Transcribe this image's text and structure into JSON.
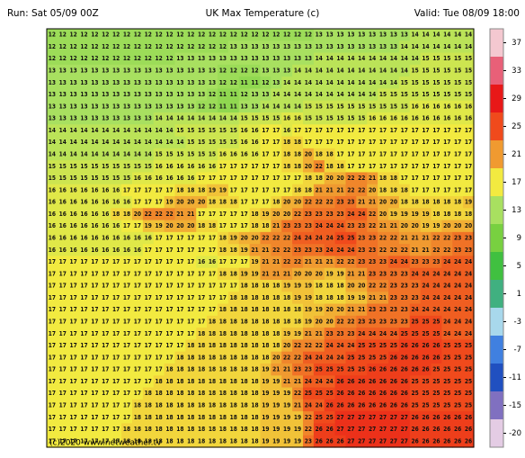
{
  "header": {
    "run": "Run: Sat 05/09 00Z",
    "title": "UK Max Temperature (c)",
    "valid": "Valid: Tue 08/09 18:00"
  },
  "map": {
    "credit": "(c)2020 www.netweather.tv",
    "grid": [
      [
        12,
        12,
        12,
        12,
        12,
        12,
        12,
        12,
        12,
        12,
        12,
        12,
        12,
        12,
        12,
        12,
        12,
        12,
        12,
        12,
        12,
        12,
        12,
        12,
        12,
        13,
        13,
        13,
        13,
        13,
        13,
        13,
        13,
        13,
        14,
        14,
        14,
        14,
        14,
        14
      ],
      [
        12,
        12,
        12,
        12,
        12,
        12,
        12,
        12,
        12,
        12,
        12,
        12,
        12,
        12,
        12,
        12,
        12,
        13,
        13,
        13,
        13,
        13,
        13,
        13,
        13,
        13,
        13,
        13,
        13,
        13,
        13,
        13,
        13,
        14,
        14,
        14,
        14,
        14,
        14,
        14
      ],
      [
        12,
        12,
        12,
        12,
        12,
        12,
        12,
        12,
        12,
        12,
        12,
        12,
        13,
        13,
        13,
        13,
        13,
        13,
        13,
        13,
        13,
        13,
        13,
        13,
        13,
        14,
        14,
        14,
        14,
        14,
        14,
        14,
        14,
        14,
        14,
        15,
        15,
        15,
        15,
        15
      ],
      [
        13,
        13,
        13,
        13,
        13,
        13,
        13,
        13,
        13,
        13,
        13,
        13,
        13,
        13,
        13,
        13,
        12,
        12,
        12,
        12,
        13,
        13,
        13,
        14,
        14,
        14,
        14,
        14,
        14,
        14,
        14,
        14,
        14,
        14,
        15,
        15,
        15,
        15,
        15,
        15
      ],
      [
        13,
        13,
        13,
        13,
        13,
        13,
        13,
        13,
        13,
        13,
        13,
        13,
        13,
        13,
        13,
        13,
        12,
        12,
        11,
        11,
        12,
        13,
        14,
        14,
        14,
        14,
        14,
        14,
        14,
        14,
        14,
        14,
        14,
        15,
        15,
        15,
        15,
        15,
        15,
        15
      ],
      [
        13,
        13,
        13,
        13,
        13,
        13,
        13,
        13,
        13,
        13,
        13,
        13,
        13,
        13,
        13,
        12,
        11,
        11,
        12,
        13,
        13,
        14,
        14,
        14,
        14,
        14,
        14,
        14,
        14,
        14,
        14,
        15,
        15,
        15,
        15,
        15,
        15,
        15,
        15,
        15
      ],
      [
        13,
        13,
        13,
        13,
        13,
        13,
        13,
        13,
        13,
        13,
        13,
        13,
        13,
        13,
        12,
        12,
        11,
        11,
        13,
        13,
        14,
        14,
        14,
        14,
        15,
        15,
        15,
        15,
        15,
        15,
        15,
        15,
        15,
        15,
        16,
        16,
        16,
        16,
        16,
        16
      ],
      [
        13,
        13,
        13,
        13,
        13,
        13,
        13,
        13,
        13,
        13,
        14,
        14,
        14,
        14,
        14,
        14,
        14,
        14,
        15,
        15,
        15,
        15,
        16,
        16,
        15,
        15,
        15,
        15,
        15,
        15,
        16,
        16,
        16,
        16,
        16,
        16,
        16,
        16,
        16,
        16
      ],
      [
        14,
        14,
        14,
        14,
        14,
        14,
        14,
        14,
        14,
        14,
        14,
        14,
        15,
        15,
        15,
        15,
        15,
        15,
        16,
        16,
        17,
        17,
        16,
        17,
        17,
        17,
        17,
        17,
        17,
        17,
        17,
        17,
        17,
        17,
        17,
        17,
        17,
        17,
        17,
        17
      ],
      [
        14,
        14,
        14,
        14,
        14,
        14,
        14,
        14,
        14,
        14,
        14,
        14,
        14,
        15,
        15,
        15,
        15,
        15,
        16,
        16,
        17,
        17,
        18,
        18,
        17,
        17,
        17,
        17,
        17,
        17,
        17,
        17,
        17,
        17,
        17,
        17,
        17,
        17,
        17,
        17
      ],
      [
        14,
        14,
        14,
        14,
        14,
        14,
        14,
        14,
        14,
        14,
        15,
        15,
        15,
        15,
        15,
        15,
        16,
        16,
        16,
        16,
        17,
        17,
        18,
        18,
        20,
        18,
        18,
        17,
        17,
        17,
        17,
        17,
        17,
        17,
        17,
        17,
        17,
        17,
        17,
        17
      ],
      [
        15,
        15,
        15,
        15,
        15,
        15,
        15,
        15,
        15,
        15,
        16,
        16,
        16,
        16,
        16,
        16,
        17,
        17,
        17,
        17,
        17,
        17,
        18,
        18,
        20,
        22,
        18,
        18,
        17,
        17,
        17,
        17,
        17,
        17,
        17,
        17,
        17,
        17,
        17,
        17
      ],
      [
        15,
        15,
        15,
        15,
        15,
        15,
        15,
        15,
        16,
        16,
        16,
        16,
        16,
        16,
        17,
        17,
        17,
        17,
        17,
        17,
        17,
        17,
        17,
        17,
        18,
        18,
        20,
        20,
        22,
        22,
        21,
        18,
        18,
        17,
        17,
        17,
        17,
        17,
        17,
        17
      ],
      [
        16,
        16,
        16,
        16,
        16,
        16,
        16,
        17,
        17,
        17,
        17,
        17,
        18,
        18,
        18,
        19,
        19,
        17,
        17,
        17,
        17,
        17,
        17,
        18,
        18,
        21,
        21,
        21,
        22,
        22,
        20,
        18,
        18,
        18,
        17,
        17,
        17,
        17,
        17,
        17
      ],
      [
        16,
        16,
        16,
        16,
        16,
        16,
        16,
        16,
        17,
        17,
        17,
        19,
        20,
        20,
        20,
        18,
        18,
        18,
        17,
        17,
        17,
        18,
        20,
        20,
        22,
        22,
        22,
        23,
        23,
        21,
        21,
        20,
        20,
        18,
        18,
        18,
        18,
        18,
        18,
        19
      ],
      [
        16,
        16,
        16,
        16,
        16,
        16,
        18,
        18,
        20,
        22,
        22,
        22,
        21,
        21,
        17,
        17,
        17,
        17,
        17,
        18,
        19,
        20,
        20,
        22,
        23,
        23,
        23,
        23,
        24,
        24,
        22,
        20,
        19,
        19,
        19,
        19,
        18,
        18,
        18,
        18
      ],
      [
        16,
        16,
        16,
        16,
        16,
        16,
        16,
        17,
        17,
        19,
        19,
        20,
        20,
        20,
        18,
        18,
        17,
        17,
        17,
        18,
        18,
        21,
        23,
        23,
        23,
        24,
        24,
        24,
        23,
        23,
        22,
        21,
        21,
        20,
        20,
        19,
        19,
        20,
        20,
        20
      ],
      [
        16,
        16,
        16,
        16,
        16,
        16,
        16,
        16,
        16,
        16,
        17,
        17,
        17,
        17,
        17,
        17,
        18,
        19,
        20,
        20,
        22,
        22,
        22,
        24,
        24,
        24,
        24,
        25,
        25,
        23,
        23,
        22,
        22,
        21,
        21,
        21,
        22,
        22,
        23,
        23
      ],
      [
        16,
        16,
        16,
        16,
        16,
        16,
        16,
        16,
        16,
        17,
        17,
        17,
        17,
        17,
        17,
        17,
        18,
        18,
        19,
        21,
        21,
        22,
        22,
        23,
        23,
        23,
        24,
        24,
        24,
        23,
        23,
        22,
        22,
        22,
        21,
        21,
        22,
        22,
        23,
        23
      ],
      [
        17,
        17,
        17,
        17,
        17,
        17,
        17,
        17,
        17,
        17,
        17,
        17,
        17,
        17,
        16,
        16,
        17,
        17,
        17,
        19,
        21,
        21,
        22,
        22,
        21,
        21,
        21,
        22,
        22,
        23,
        23,
        23,
        24,
        24,
        23,
        23,
        23,
        24,
        24,
        24
      ],
      [
        17,
        17,
        17,
        17,
        17,
        17,
        17,
        17,
        17,
        17,
        17,
        17,
        17,
        17,
        17,
        17,
        18,
        18,
        19,
        19,
        21,
        21,
        21,
        20,
        20,
        20,
        19,
        19,
        21,
        21,
        23,
        23,
        23,
        23,
        24,
        24,
        24,
        24,
        24,
        24
      ],
      [
        17,
        17,
        17,
        17,
        17,
        17,
        17,
        17,
        17,
        17,
        17,
        17,
        17,
        17,
        17,
        17,
        17,
        17,
        18,
        18,
        18,
        18,
        19,
        19,
        19,
        18,
        18,
        18,
        20,
        20,
        22,
        22,
        23,
        23,
        23,
        24,
        24,
        24,
        24,
        24
      ],
      [
        17,
        17,
        17,
        17,
        17,
        17,
        17,
        17,
        17,
        17,
        17,
        17,
        17,
        17,
        17,
        17,
        17,
        18,
        18,
        18,
        18,
        18,
        18,
        19,
        19,
        18,
        18,
        18,
        19,
        19,
        21,
        21,
        23,
        23,
        23,
        24,
        24,
        24,
        24,
        24
      ],
      [
        17,
        17,
        17,
        17,
        17,
        17,
        17,
        17,
        17,
        17,
        17,
        17,
        17,
        17,
        17,
        17,
        18,
        18,
        18,
        18,
        18,
        18,
        18,
        18,
        19,
        19,
        20,
        20,
        21,
        21,
        23,
        23,
        23,
        23,
        24,
        24,
        24,
        24,
        24,
        24
      ],
      [
        17,
        17,
        17,
        17,
        17,
        17,
        17,
        17,
        17,
        17,
        17,
        17,
        17,
        17,
        17,
        18,
        18,
        18,
        18,
        18,
        18,
        18,
        18,
        18,
        19,
        20,
        20,
        22,
        22,
        23,
        23,
        23,
        23,
        23,
        25,
        25,
        25,
        24,
        24,
        24
      ],
      [
        17,
        17,
        17,
        17,
        17,
        17,
        17,
        17,
        17,
        17,
        17,
        17,
        17,
        17,
        18,
        18,
        18,
        18,
        18,
        18,
        18,
        18,
        19,
        19,
        21,
        21,
        23,
        23,
        23,
        24,
        24,
        24,
        24,
        25,
        25,
        25,
        25,
        24,
        24,
        24
      ],
      [
        17,
        17,
        17,
        17,
        17,
        17,
        17,
        17,
        17,
        17,
        17,
        17,
        17,
        18,
        18,
        18,
        18,
        18,
        18,
        18,
        18,
        18,
        20,
        22,
        22,
        22,
        24,
        24,
        24,
        25,
        25,
        25,
        25,
        26,
        26,
        26,
        26,
        25,
        25,
        25
      ],
      [
        17,
        17,
        17,
        17,
        17,
        17,
        17,
        17,
        17,
        17,
        17,
        17,
        18,
        18,
        18,
        18,
        18,
        18,
        18,
        18,
        18,
        20,
        22,
        22,
        24,
        24,
        24,
        24,
        25,
        25,
        25,
        25,
        26,
        26,
        26,
        26,
        26,
        25,
        25,
        25
      ],
      [
        17,
        17,
        17,
        17,
        17,
        17,
        17,
        17,
        17,
        17,
        17,
        18,
        18,
        18,
        18,
        18,
        18,
        18,
        18,
        18,
        19,
        21,
        21,
        23,
        23,
        25,
        25,
        25,
        25,
        25,
        26,
        26,
        26,
        26,
        26,
        26,
        25,
        25,
        25,
        25
      ],
      [
        17,
        17,
        17,
        17,
        17,
        17,
        17,
        17,
        17,
        17,
        18,
        18,
        18,
        18,
        18,
        18,
        18,
        18,
        18,
        18,
        19,
        19,
        21,
        21,
        24,
        24,
        24,
        26,
        26,
        26,
        26,
        26,
        26,
        26,
        25,
        25,
        25,
        25,
        25,
        25
      ],
      [
        17,
        17,
        17,
        17,
        17,
        17,
        17,
        17,
        17,
        18,
        18,
        18,
        18,
        18,
        18,
        18,
        18,
        18,
        18,
        18,
        19,
        19,
        19,
        22,
        25,
        25,
        25,
        26,
        26,
        26,
        26,
        26,
        26,
        26,
        25,
        25,
        25,
        25,
        25,
        25
      ],
      [
        17,
        17,
        17,
        17,
        17,
        17,
        17,
        17,
        18,
        18,
        18,
        18,
        18,
        18,
        18,
        18,
        18,
        18,
        18,
        18,
        19,
        19,
        19,
        21,
        24,
        24,
        26,
        26,
        26,
        26,
        26,
        26,
        26,
        26,
        25,
        25,
        25,
        25,
        25,
        25
      ],
      [
        17,
        17,
        17,
        17,
        17,
        17,
        17,
        17,
        18,
        18,
        18,
        18,
        18,
        18,
        18,
        18,
        18,
        18,
        18,
        18,
        19,
        19,
        19,
        19,
        22,
        25,
        25,
        27,
        27,
        27,
        27,
        27,
        27,
        27,
        26,
        26,
        26,
        26,
        26,
        26
      ],
      [
        17,
        17,
        17,
        17,
        17,
        17,
        17,
        18,
        18,
        18,
        18,
        18,
        18,
        18,
        18,
        18,
        18,
        18,
        18,
        18,
        19,
        19,
        19,
        19,
        22,
        26,
        26,
        27,
        27,
        27,
        27,
        27,
        27,
        27,
        26,
        26,
        26,
        26,
        26,
        26
      ],
      [
        17,
        17,
        17,
        17,
        17,
        17,
        17,
        18,
        18,
        18,
        18,
        18,
        18,
        18,
        18,
        18,
        18,
        18,
        18,
        18,
        19,
        19,
        19,
        19,
        23,
        26,
        26,
        26,
        27,
        27,
        27,
        27,
        27,
        27,
        26,
        26,
        26,
        26,
        26,
        26
      ]
    ]
  },
  "colorbar": {
    "ticks": [
      37,
      33,
      29,
      25,
      21,
      17,
      13,
      9,
      5,
      1,
      -3,
      -7,
      -11,
      -15,
      -20
    ],
    "colors": [
      "#f4c8d0",
      "#e86078",
      "#e81818",
      "#f04a1c",
      "#f09a30",
      "#f2ea40",
      "#a8e060",
      "#78d040",
      "#40c040",
      "#40b080",
      "#a8d8ec",
      "#4080e0",
      "#2050c0",
      "#8070c0",
      "#e4cce4"
    ]
  }
}
